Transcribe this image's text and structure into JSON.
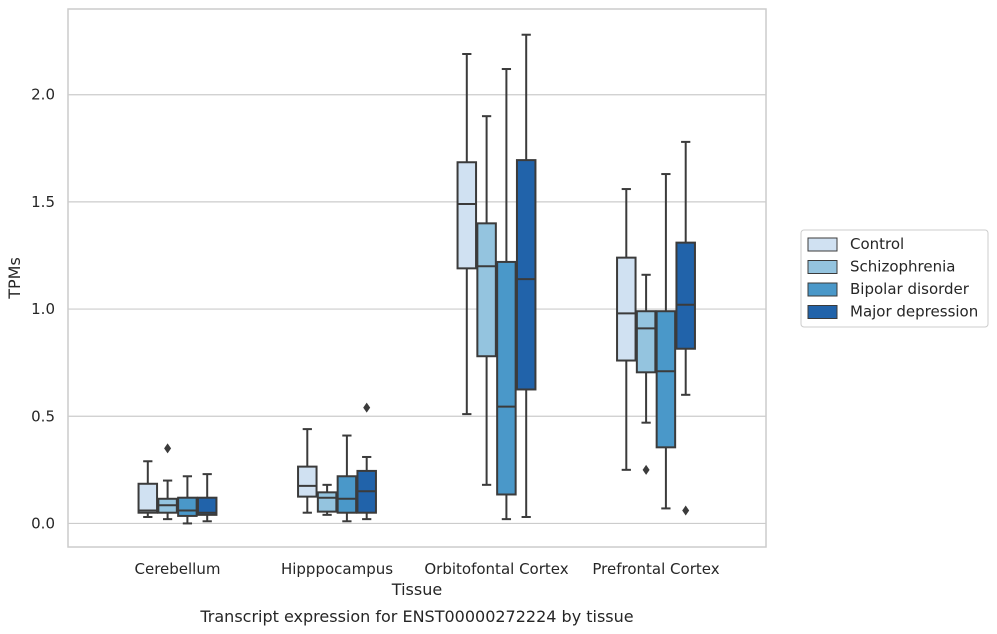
{
  "chart_data": {
    "type": "box",
    "categories": [
      "Cerebellum",
      "Hipppocampus",
      "Orbitofontal Cortex",
      "Prefrontal Cortex"
    ],
    "xlabel": "Tissue",
    "ylabel": "TPMs",
    "caption": "Transcript expression for ENST00000272224 by tissue",
    "ylim": [
      -0.11,
      2.4
    ],
    "yticks": [
      "0.0",
      "0.5",
      "1.0",
      "1.5",
      "2.0"
    ],
    "grid": true,
    "legend_position": "right",
    "series": [
      {
        "name": "Control",
        "color": "#d0e1f2",
        "boxes": [
          {
            "whislo": 0.03,
            "q1": 0.05,
            "med": 0.06,
            "q3": 0.185,
            "whishi": 0.29,
            "fliers": []
          },
          {
            "whislo": 0.05,
            "q1": 0.125,
            "med": 0.175,
            "q3": 0.265,
            "whishi": 0.44,
            "fliers": []
          },
          {
            "whislo": 0.51,
            "q1": 1.19,
            "med": 1.49,
            "q3": 1.685,
            "whishi": 2.19,
            "fliers": []
          },
          {
            "whislo": 0.25,
            "q1": 0.76,
            "med": 0.98,
            "q3": 1.24,
            "whishi": 1.56,
            "fliers": []
          }
        ]
      },
      {
        "name": "Schizophrenia",
        "color": "#94c4df",
        "boxes": [
          {
            "whislo": 0.02,
            "q1": 0.05,
            "med": 0.085,
            "q3": 0.115,
            "whishi": 0.2,
            "fliers": [
              0.35
            ]
          },
          {
            "whislo": 0.04,
            "q1": 0.055,
            "med": 0.12,
            "q3": 0.145,
            "whishi": 0.18,
            "fliers": []
          },
          {
            "whislo": 0.18,
            "q1": 0.78,
            "med": 1.2,
            "q3": 1.4,
            "whishi": 1.9,
            "fliers": []
          },
          {
            "whislo": 0.47,
            "q1": 0.705,
            "med": 0.91,
            "q3": 0.99,
            "whishi": 1.16,
            "fliers": [
              0.25
            ]
          }
        ]
      },
      {
        "name": "Bipolar disorder",
        "color": "#4a98c9",
        "boxes": [
          {
            "whislo": 0.0,
            "q1": 0.035,
            "med": 0.06,
            "q3": 0.12,
            "whishi": 0.22,
            "fliers": []
          },
          {
            "whislo": 0.01,
            "q1": 0.05,
            "med": 0.115,
            "q3": 0.22,
            "whishi": 0.41,
            "fliers": []
          },
          {
            "whislo": 0.02,
            "q1": 0.135,
            "med": 0.545,
            "q3": 1.22,
            "whishi": 2.12,
            "fliers": []
          },
          {
            "whislo": 0.07,
            "q1": 0.355,
            "med": 0.71,
            "q3": 0.99,
            "whishi": 1.63,
            "fliers": []
          }
        ]
      },
      {
        "name": "Major depression",
        "color": "#2163aa",
        "boxes": [
          {
            "whislo": 0.01,
            "q1": 0.04,
            "med": 0.05,
            "q3": 0.12,
            "whishi": 0.23,
            "fliers": []
          },
          {
            "whislo": 0.02,
            "q1": 0.05,
            "med": 0.15,
            "q3": 0.245,
            "whishi": 0.31,
            "fliers": [
              0.54
            ]
          },
          {
            "whislo": 0.03,
            "q1": 0.625,
            "med": 1.14,
            "q3": 1.695,
            "whishi": 2.28,
            "fliers": []
          },
          {
            "whislo": 0.6,
            "q1": 0.815,
            "med": 1.02,
            "q3": 1.31,
            "whishi": 1.78,
            "fliers": [
              0.06
            ]
          }
        ]
      }
    ]
  }
}
